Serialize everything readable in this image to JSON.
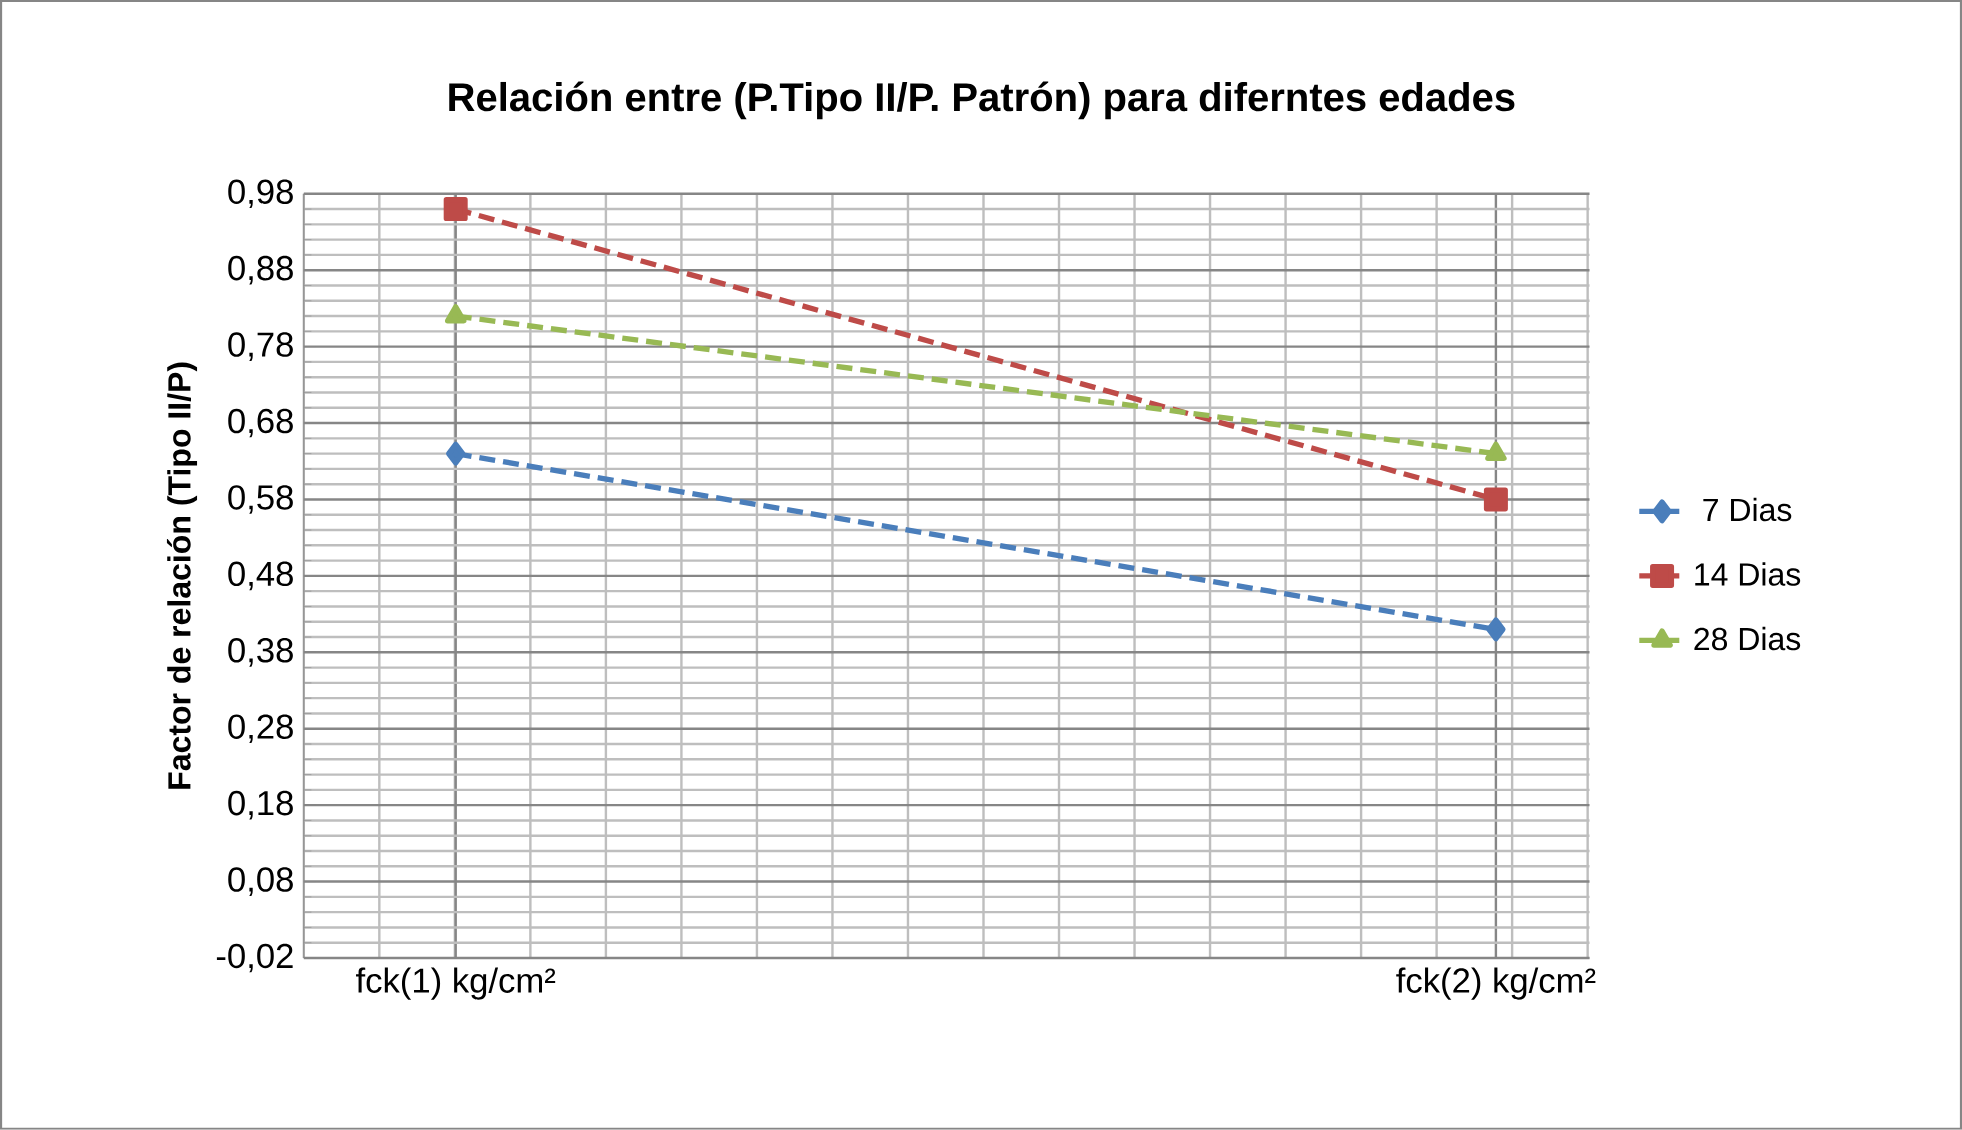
{
  "chart_data": {
    "type": "line",
    "title": "Relación entre (P.Tipo II/P. Patrón) para diferntes edades",
    "ylabel": "Factor de relación (Tipo II/P)",
    "categories": [
      "fck(1) kg/cm²",
      "fck(2) kg/cm²"
    ],
    "series": [
      {
        "name": "7 Dias",
        "color": "#4a7ebb",
        "values": [
          0.64,
          0.41
        ],
        "marker": "diamond"
      },
      {
        "name": "14 Dias",
        "color": "#be4b48",
        "values": [
          0.96,
          0.58
        ],
        "marker": "square"
      },
      {
        "name": "28 Dias",
        "color": "#98b954",
        "values": [
          0.82,
          0.64
        ],
        "marker": "triangle"
      }
    ],
    "ylim": [
      -0.02,
      0.98
    ],
    "yticks": [
      {
        "value": -0.02,
        "label": "-0,02"
      },
      {
        "value": 0.08,
        "label": "0,08"
      },
      {
        "value": 0.18,
        "label": "0,18"
      },
      {
        "value": 0.28,
        "label": "0,28"
      },
      {
        "value": 0.38,
        "label": "0,38"
      },
      {
        "value": 0.48,
        "label": "0,48"
      },
      {
        "value": 0.58,
        "label": "0,58"
      },
      {
        "value": 0.68,
        "label": "0,68"
      },
      {
        "value": 0.78,
        "label": "0,78"
      },
      {
        "value": 0.88,
        "label": "0,88"
      },
      {
        "value": 0.98,
        "label": "0,98"
      }
    ],
    "grid": true,
    "legend": "right",
    "line_style": "dashed"
  }
}
